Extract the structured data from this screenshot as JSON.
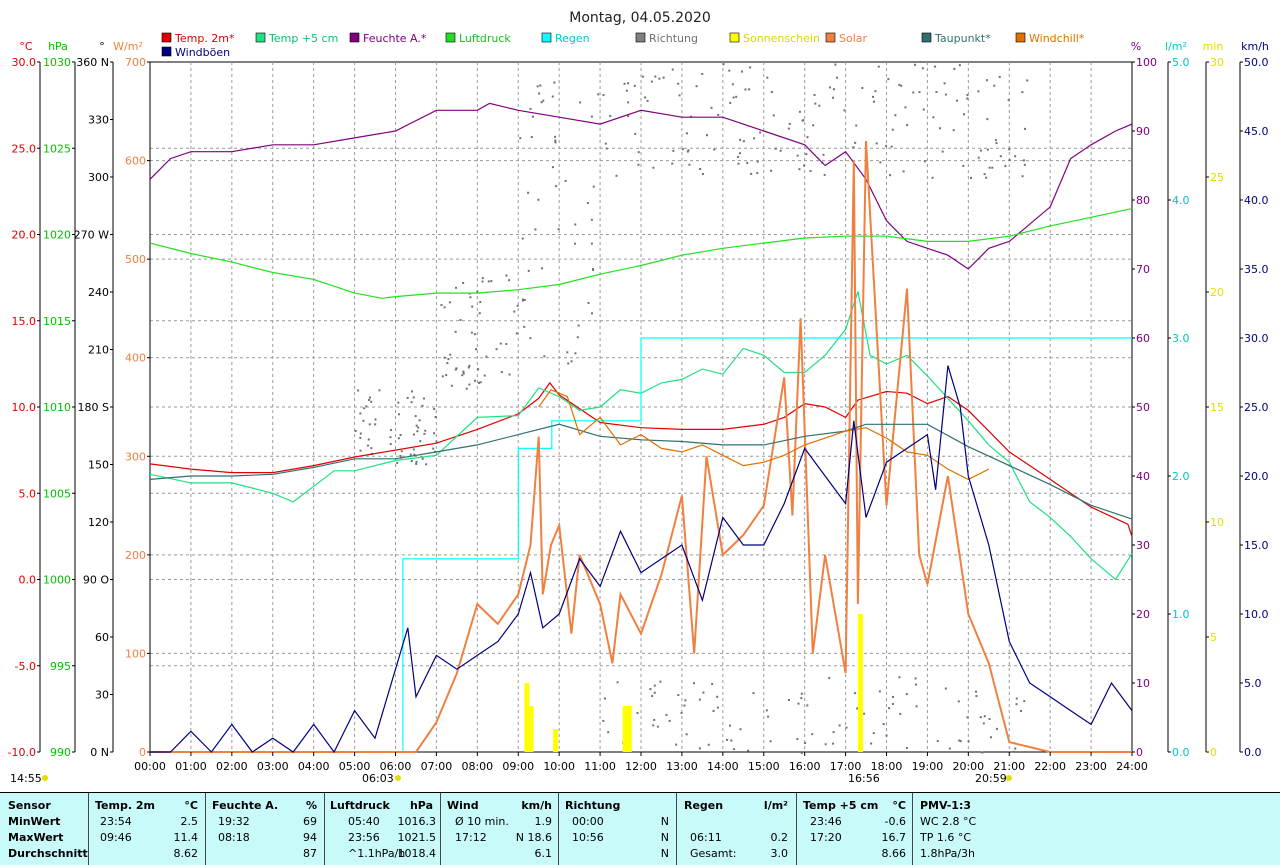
{
  "title": "Montag, 04.05.2020",
  "axes": {
    "temp": {
      "unit": "°C",
      "color": "#e00000",
      "ticks": [
        "30.0",
        "25.0",
        "20.0",
        "15.0",
        "10.0",
        "5.0",
        "0.0",
        "-5.0",
        "-10.0"
      ]
    },
    "pressure": {
      "unit": "hPa",
      "color": "#00c000",
      "ticks": [
        "1030",
        "1025",
        "1020",
        "1015",
        "1010",
        "1005",
        "1000",
        "995",
        "990"
      ]
    },
    "direction": {
      "unit": "°",
      "color": "#000000",
      "ticks": [
        "360 N",
        "330",
        "300",
        "270 W",
        "240",
        "210",
        "180 S",
        "150",
        "120",
        "90 O",
        "60",
        "30",
        "0 N"
      ]
    },
    "solar": {
      "unit": "W/m²",
      "color": "#f08040",
      "ticks": [
        "700",
        "600",
        "500",
        "400",
        "300",
        "200",
        "100",
        "0"
      ]
    },
    "humidity": {
      "unit": "%",
      "color": "#800080",
      "ticks": [
        "100",
        "90",
        "80",
        "70",
        "60",
        "50",
        "40",
        "30",
        "20",
        "10",
        "0"
      ]
    },
    "rain": {
      "unit": "l/m²",
      "color": "#00c8c8",
      "ticks": [
        "5.0",
        "4.0",
        "3.0",
        "2.0",
        "1.0",
        "0.0"
      ]
    },
    "sunshine": {
      "unit": "min",
      "color": "#e0e000",
      "ticks": [
        "30",
        "25",
        "20",
        "15",
        "10",
        "5",
        "0"
      ]
    },
    "wind": {
      "unit": "km/h",
      "color": "#000080",
      "ticks": [
        "50.0",
        "45.0",
        "40.0",
        "35.0",
        "30.0",
        "25.0",
        "20.0",
        "15.0",
        "10.0",
        "5.0",
        "0.0"
      ]
    }
  },
  "legend": [
    {
      "label": "Temp. 2m*",
      "color": "#e00000"
    },
    {
      "label": "Temp +5 cm",
      "color": "#20e080"
    },
    {
      "label": "Feuchte A.*",
      "color": "#800080"
    },
    {
      "label": "Luftdruck",
      "color": "#20e020"
    },
    {
      "label": "Regen",
      "color": "#00ffff"
    },
    {
      "label": "Richtung",
      "color": "#808080"
    },
    {
      "label": "Sonnenschein",
      "color": "#ffff00"
    },
    {
      "label": "Solar",
      "color": "#f08040"
    },
    {
      "label": "Taupunkt*",
      "color": "#307070"
    },
    {
      "label": "Windchill*",
      "color": "#e07000"
    },
    {
      "label": "Windböen",
      "color": "#000080"
    }
  ],
  "time_labels": [
    "00:00",
    "01:00",
    "02:00",
    "03:00",
    "04:00",
    "05:00",
    "06:00",
    "07:00",
    "08:00",
    "09:00",
    "10:00",
    "11:00",
    "12:00",
    "13:00",
    "14:00",
    "15:00",
    "16:00",
    "17:00",
    "18:00",
    "19:00",
    "20:00",
    "21:00",
    "22:00",
    "23:00",
    "24:00"
  ],
  "markers": {
    "sunshine_total": "14:55",
    "sunrise": "06:03",
    "solar_noon": "16:56",
    "sunset": "20:59"
  },
  "stats": {
    "headers": {
      "sensor": "Sensor",
      "temp": "Temp. 2m",
      "temp_unit": "°C",
      "hum": "Feuchte A.",
      "hum_unit": "%",
      "press": "Luftdruck",
      "press_unit": "hPa",
      "wind": "Wind",
      "wind_unit": "km/h",
      "dir": "Richtung",
      "rain": "Regen",
      "rain_unit": "l/m²",
      "t5": "Temp +5 cm",
      "t5_unit": "°C",
      "pmv": "PMV-1:3"
    },
    "rows": [
      {
        "label": "MinWert",
        "temp_t": "23:54",
        "temp_v": "2.5",
        "hum_t": "19:32",
        "hum_v": "69",
        "press_t": "05:40",
        "press_v": "1016.3",
        "wind_t": "Ø 10 min.",
        "wind_v": "1.9",
        "dir_t": "00:00",
        "dir_v": "N",
        "rain_t": "",
        "rain_v": "",
        "t5_t": "23:46",
        "t5_v": "-0.6",
        "pmv": "WC 2.8 °C"
      },
      {
        "label": "MaxWert",
        "temp_t": "09:46",
        "temp_v": "11.4",
        "hum_t": "08:18",
        "hum_v": "94",
        "press_t": "23:56",
        "press_v": "1021.5",
        "wind_t": "17:12",
        "wind_v": "N 18.6",
        "dir_t": "10:56",
        "dir_v": "N",
        "rain_t": "06:11",
        "rain_v": "0.2",
        "t5_t": "17:20",
        "t5_v": "16.7",
        "pmv": "TP 1.6 °C"
      },
      {
        "label": "Durchschnitt",
        "temp_t": "",
        "temp_v": "8.62",
        "hum_t": "",
        "hum_v": "87",
        "press_t": "^1.1hPa/h",
        "press_v": "1018.4",
        "wind_t": "",
        "wind_v": "6.1",
        "dir_t": "",
        "dir_v": "N",
        "rain_t": "Gesamt:",
        "rain_v": "3.0",
        "t5_t": "",
        "t5_v": "8.66",
        "pmv": "1.8hPa/3h"
      }
    ]
  },
  "chart_data": {
    "type": "line",
    "title": "Montag, 04.05.2020",
    "x_unit": "hour of day",
    "xlim": [
      0,
      24
    ],
    "series": [
      {
        "name": "Temp. 2m*",
        "axis": "temp",
        "color": "#e00000",
        "x": [
          0,
          1,
          2,
          3,
          4,
          5,
          6,
          7,
          8,
          9,
          9.5,
          9.77,
          10,
          11,
          12,
          13,
          14,
          15,
          15.5,
          16,
          16.5,
          17,
          17.3,
          18,
          18.5,
          19,
          19.5,
          20,
          20.5,
          21,
          22,
          23,
          23.9,
          24
        ],
        "y": [
          6.7,
          6.4,
          6.2,
          6.2,
          6.6,
          7.1,
          7.5,
          7.9,
          8.7,
          9.6,
          10.5,
          11.4,
          10.7,
          9.1,
          8.8,
          8.7,
          8.7,
          9,
          9.4,
          10.2,
          10,
          9.4,
          10.4,
          10.9,
          10.8,
          10.2,
          10.6,
          9.8,
          8.6,
          7.4,
          5.8,
          4.2,
          3.2,
          2.5
        ]
      },
      {
        "name": "Temp +5 cm",
        "axis": "temp",
        "color": "#20e080",
        "x": [
          0,
          1,
          2,
          3,
          3.5,
          4,
          4.5,
          5,
          6,
          7,
          8,
          9,
          9.5,
          10,
          10.5,
          11,
          11.5,
          12,
          12.5,
          13,
          13.5,
          14,
          14.5,
          15,
          15.5,
          16,
          16.5,
          17,
          17.3,
          17.6,
          18,
          18.5,
          19,
          19.5,
          20,
          20.5,
          21,
          21.5,
          22,
          22.5,
          23,
          23.6,
          24
        ],
        "y": [
          6.1,
          5.6,
          5.6,
          5.0,
          4.5,
          5.4,
          6.3,
          6.3,
          6.9,
          7.2,
          9.4,
          9.5,
          11.1,
          10.6,
          9.8,
          10,
          11,
          10.8,
          11.4,
          11.6,
          12.2,
          11.9,
          13.4,
          13,
          12,
          12,
          13,
          14.5,
          16.7,
          13,
          12.5,
          13,
          11.8,
          10.5,
          9.2,
          7.8,
          6.8,
          4.5,
          3.6,
          2.5,
          1.2,
          0,
          1.5
        ]
      },
      {
        "name": "Feuchte A.*",
        "axis": "humidity",
        "color": "#800080",
        "x": [
          0,
          0.5,
          1,
          2,
          3,
          4,
          5,
          6,
          7,
          8,
          8.3,
          9,
          10,
          11,
          12,
          13,
          14,
          15,
          16,
          16.5,
          17,
          17.5,
          18,
          18.5,
          19,
          19.5,
          20,
          20.5,
          21,
          22,
          22.5,
          23,
          23.6,
          24
        ],
        "y": [
          83,
          86,
          87,
          87,
          88,
          88,
          89,
          90,
          93,
          93,
          94,
          93,
          92,
          91,
          93,
          92,
          92,
          90,
          88,
          85,
          87,
          83,
          77,
          74,
          73,
          72,
          70,
          73,
          74,
          79,
          86,
          88,
          90,
          91
        ]
      },
      {
        "name": "Luftdruck",
        "axis": "pressure",
        "color": "#20e020",
        "x": [
          0,
          1,
          2,
          3,
          4,
          5,
          5.67,
          6,
          7,
          8,
          9,
          10,
          11,
          12,
          13,
          14,
          15,
          16,
          17,
          18,
          19,
          20,
          21,
          22,
          23,
          24
        ],
        "y": [
          1019.5,
          1018.9,
          1018.4,
          1017.8,
          1017.4,
          1016.6,
          1016.3,
          1016.4,
          1016.6,
          1016.6,
          1016.8,
          1017.1,
          1017.7,
          1018.2,
          1018.8,
          1019.2,
          1019.5,
          1019.8,
          1019.9,
          1019.9,
          1019.6,
          1019.6,
          1019.9,
          1020.5,
          1021.0,
          1021.5
        ]
      },
      {
        "name": "Regen",
        "axis": "rain",
        "color": "#00ffff",
        "x": [
          0,
          6.1,
          6.18,
          6.5,
          7,
          8,
          8.9,
          9.0,
          9.8,
          9.82,
          10.8,
          11.95,
          12,
          24
        ],
        "y": [
          0,
          0,
          1.4,
          1.4,
          1.4,
          1.4,
          1.4,
          2.2,
          2.2,
          2.4,
          2.4,
          2.4,
          3.0,
          3.0
        ]
      },
      {
        "name": "Solar",
        "axis": "solar",
        "color": "#f08040",
        "x": [
          0,
          6.1,
          6.5,
          7,
          7.5,
          8,
          8.5,
          9,
          9.3,
          9.5,
          9.6,
          9.8,
          10,
          10.3,
          10.5,
          11,
          11.3,
          11.5,
          12,
          12.5,
          13,
          13.3,
          13.6,
          14,
          14.5,
          15,
          15.5,
          15.7,
          15.9,
          16.2,
          16.5,
          17,
          17.2,
          17.3,
          17.5,
          18,
          18.5,
          18.8,
          19,
          19.5,
          20,
          20.5,
          21,
          22,
          24
        ],
        "y": [
          0,
          0,
          0,
          30,
          80,
          150,
          130,
          160,
          210,
          320,
          160,
          210,
          230,
          120,
          200,
          150,
          90,
          160,
          120,
          180,
          260,
          100,
          300,
          200,
          220,
          250,
          380,
          240,
          440,
          100,
          200,
          80,
          600,
          150,
          620,
          250,
          470,
          200,
          170,
          280,
          140,
          90,
          10,
          0,
          0
        ]
      },
      {
        "name": "Taupunkt*",
        "axis": "temp",
        "color": "#307070",
        "x": [
          0,
          1,
          2,
          3,
          4,
          5,
          6,
          7,
          8,
          9,
          10,
          11,
          12,
          13,
          14,
          15,
          16,
          17,
          17.5,
          18,
          19,
          20,
          21,
          22,
          23,
          24
        ],
        "y": [
          5.8,
          6.0,
          6.0,
          6.1,
          6.5,
          7.0,
          7.0,
          7.4,
          7.8,
          8.4,
          9.0,
          8.3,
          8.1,
          8.0,
          7.8,
          7.8,
          8.3,
          8.6,
          9.0,
          9.0,
          9.0,
          7.7,
          6.6,
          5.5,
          4.3,
          3.5
        ]
      },
      {
        "name": "Windchill*",
        "axis": "temp",
        "color": "#e07000",
        "x": [
          9.5,
          9.8,
          10.2,
          10.5,
          11,
          11.5,
          12,
          12.5,
          13,
          13.5,
          14,
          14.5,
          15,
          15.5,
          16,
          16.5,
          17,
          17.5,
          18,
          18.5,
          19,
          19.5,
          20,
          20.5
        ],
        "y": [
          10,
          11,
          10.6,
          8.4,
          9.4,
          7.8,
          8.4,
          7.6,
          7.4,
          7.8,
          7.2,
          6.6,
          6.8,
          7.2,
          7.8,
          8.2,
          8.6,
          8.8,
          8.2,
          7.4,
          7.2,
          6.4,
          5.8,
          6.4
        ]
      },
      {
        "name": "Windböen",
        "axis": "wind",
        "color": "#000080",
        "x": [
          0,
          0.5,
          1,
          1.5,
          2,
          2.5,
          3,
          3.5,
          4,
          4.5,
          5,
          5.5,
          6,
          6.3,
          6.5,
          7,
          7.5,
          8,
          8.5,
          9,
          9.3,
          9.6,
          10,
          10.5,
          11,
          11.5,
          12,
          12.5,
          13,
          13.5,
          14,
          14.5,
          15,
          15.5,
          16,
          16.5,
          17,
          17.2,
          17.5,
          18,
          18.5,
          19,
          19.2,
          19.5,
          19.8,
          20,
          20.5,
          21,
          21.5,
          22,
          22.5,
          23,
          23.5,
          24
        ],
        "y": [
          0,
          0,
          1.5,
          0,
          2,
          0,
          1,
          0,
          2,
          0,
          3,
          1,
          6,
          9,
          4,
          7,
          6,
          7,
          8,
          10,
          13,
          9,
          10,
          14,
          12,
          16,
          13,
          14,
          15,
          11,
          17,
          15,
          15,
          18,
          22,
          20,
          18,
          24,
          17,
          21,
          22,
          23,
          19,
          28,
          25,
          20,
          15,
          8,
          5,
          4,
          3,
          2,
          5,
          3
        ]
      },
      {
        "name": "Sonnenschein",
        "axis": "sunshine",
        "color": "#ffff00",
        "x": [
          9.2,
          9.3,
          9.9,
          11.6,
          11.7,
          17.35
        ],
        "y": [
          3,
          2,
          1,
          2,
          2,
          6
        ]
      }
    ]
  }
}
